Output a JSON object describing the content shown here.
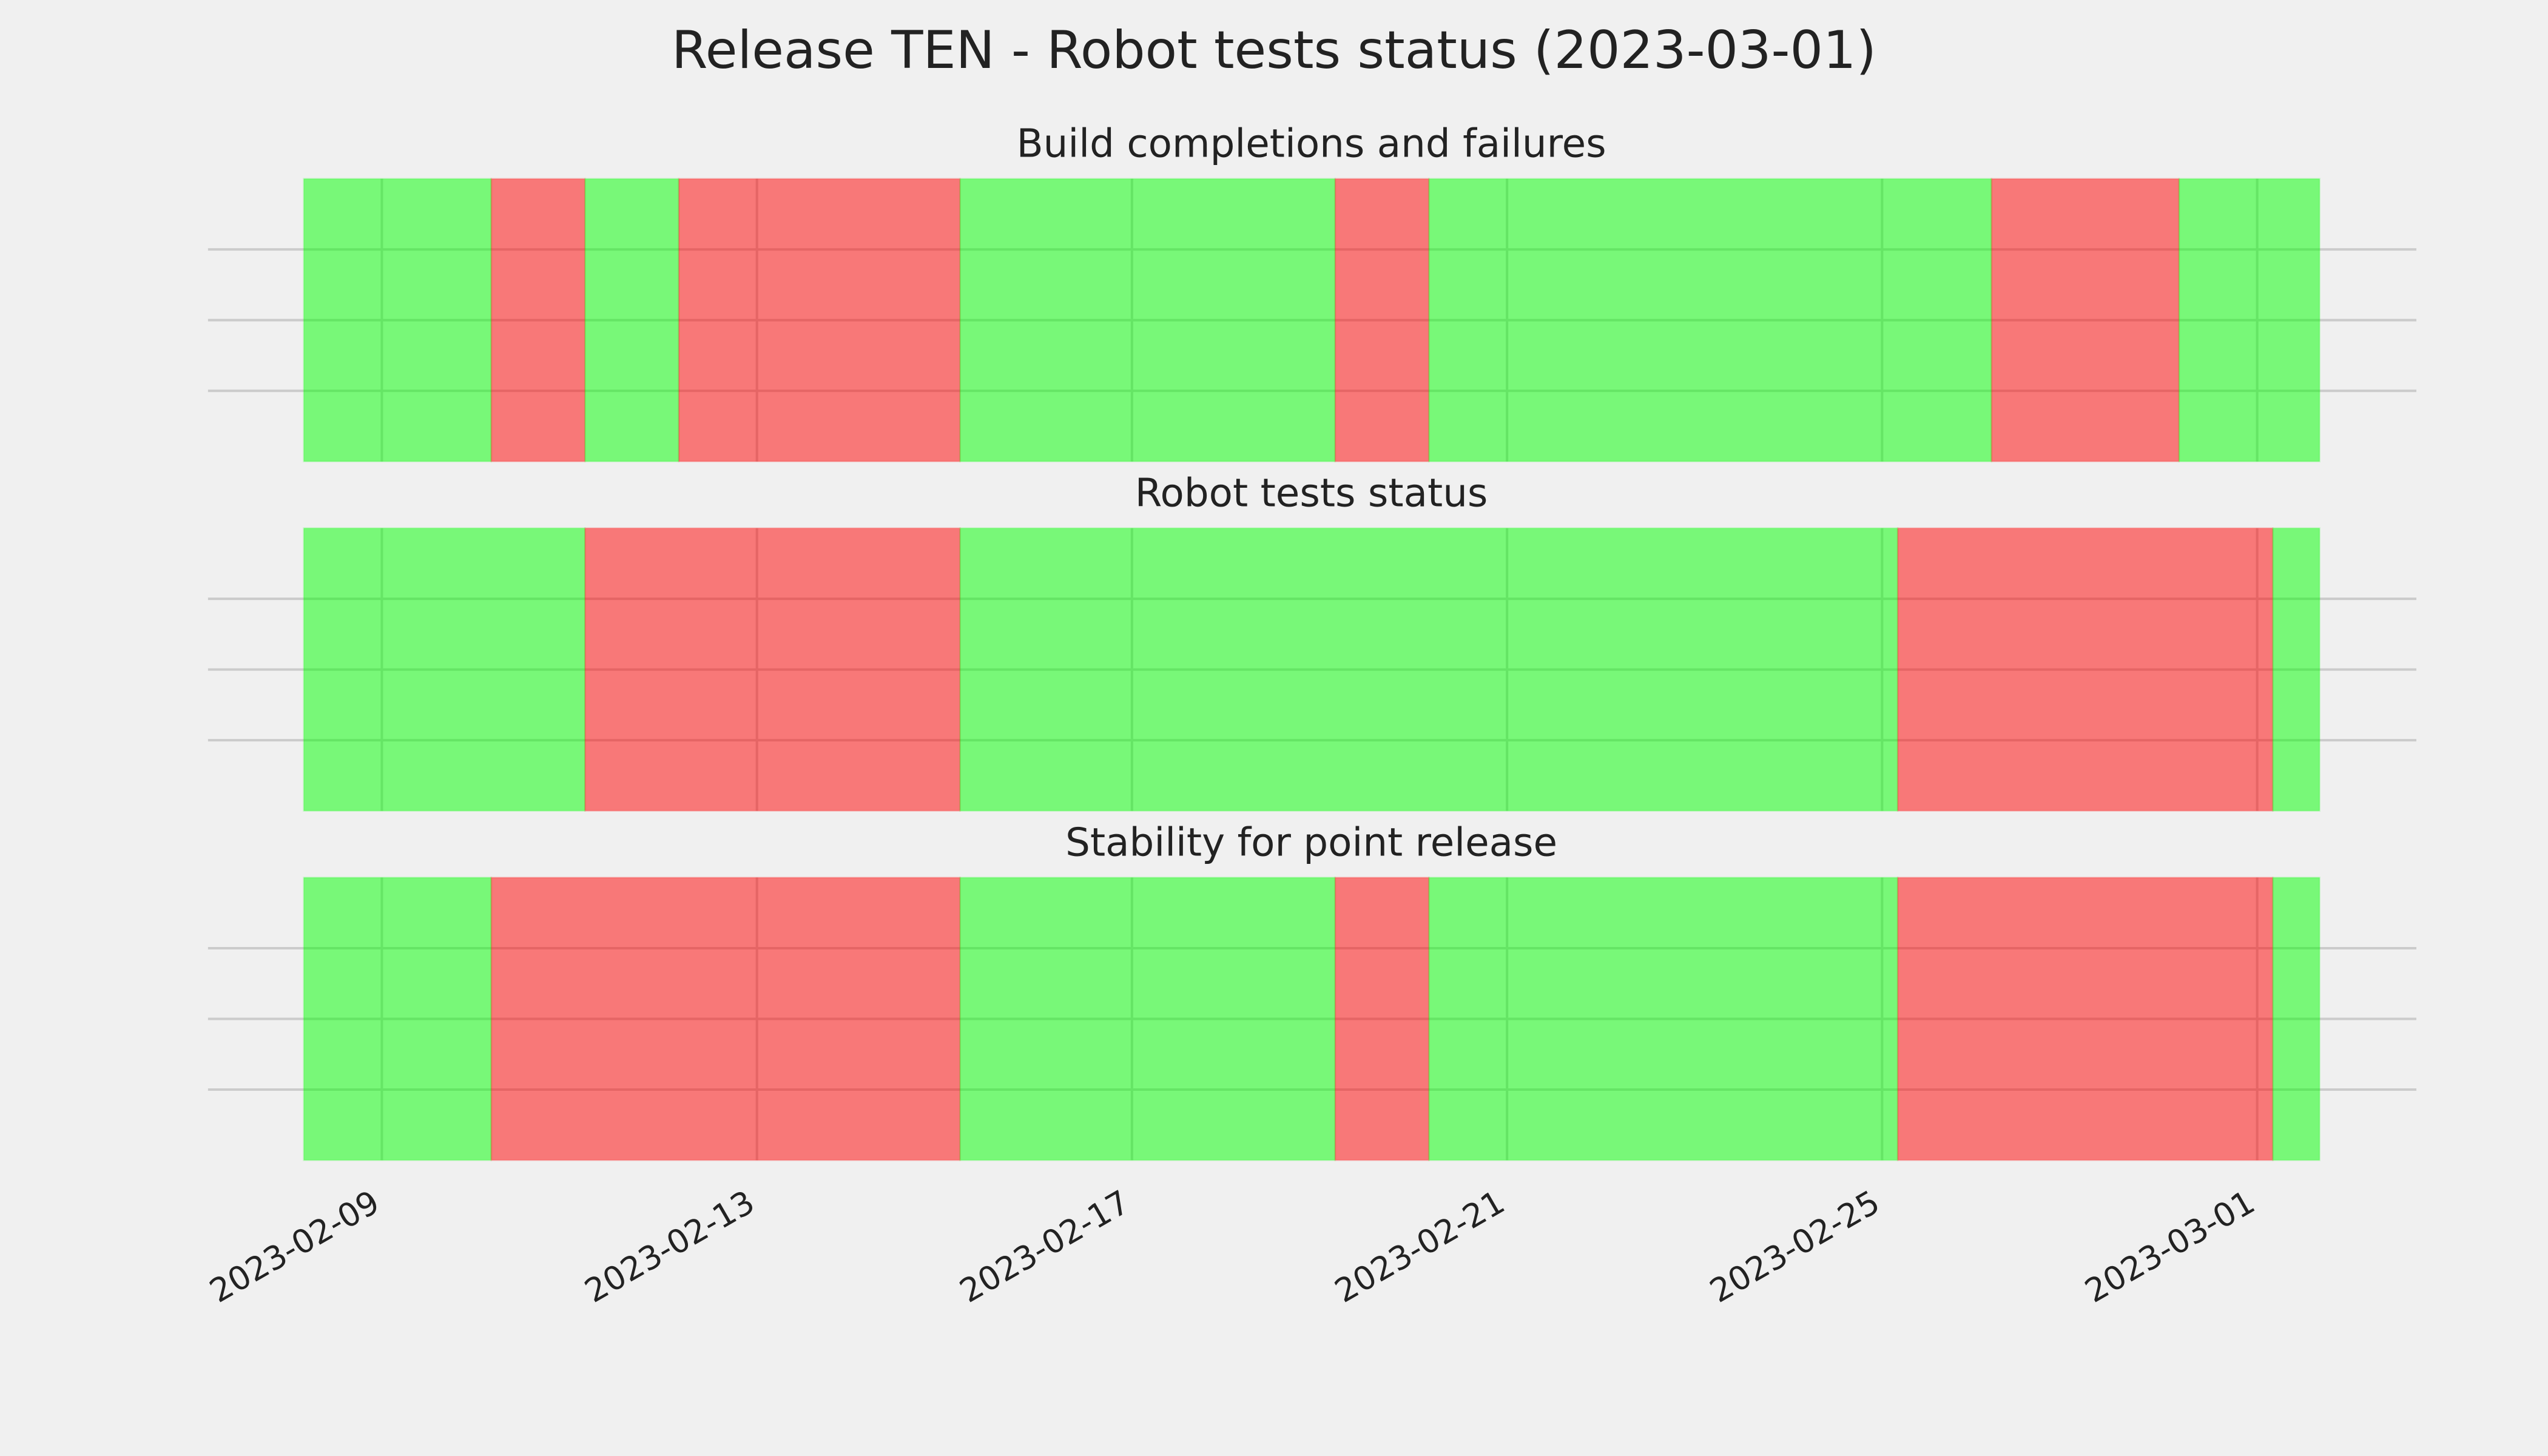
{
  "title": "Release TEN - Robot tests status (2023-03-01)",
  "chart_data": [
    {
      "type": "span",
      "title": "Build completions and failures",
      "xlim": [
        "2023-02-07T03:30",
        "2023-03-02T16:45"
      ],
      "xticks": [
        "2023-02-09",
        "2023-02-13",
        "2023-02-17",
        "2023-02-21",
        "2023-02-25",
        "2023-03-01"
      ],
      "grid": true,
      "segments": [
        {
          "start": "2023-02-08T04:00",
          "end": "2023-02-10T04:00",
          "color": "#00ff00"
        },
        {
          "start": "2023-02-10T04:00",
          "end": "2023-02-11T04:00",
          "color": "#ff0000"
        },
        {
          "start": "2023-02-11T04:00",
          "end": "2023-02-12T04:00",
          "color": "#00ff00"
        },
        {
          "start": "2023-02-12T04:00",
          "end": "2023-02-15T04:00",
          "color": "#ff0000"
        },
        {
          "start": "2023-02-15T04:00",
          "end": "2023-02-19T04:00",
          "color": "#00ff00"
        },
        {
          "start": "2023-02-19T04:00",
          "end": "2023-02-20T04:00",
          "color": "#ff0000"
        },
        {
          "start": "2023-02-20T04:00",
          "end": "2023-02-26T04:00",
          "color": "#00ff00"
        },
        {
          "start": "2023-02-26T04:00",
          "end": "2023-02-28T04:00",
          "color": "#ff0000"
        },
        {
          "start": "2023-02-28T04:00",
          "end": "2023-03-01T16:00",
          "color": "#00ff00"
        }
      ]
    },
    {
      "type": "span",
      "title": "Robot tests status",
      "xlim": [
        "2023-02-07T03:30",
        "2023-03-02T16:45"
      ],
      "xticks": [
        "2023-02-09",
        "2023-02-13",
        "2023-02-17",
        "2023-02-21",
        "2023-02-25",
        "2023-03-01"
      ],
      "grid": true,
      "segments": [
        {
          "start": "2023-02-08T04:00",
          "end": "2023-02-11T04:00",
          "color": "#00ff00"
        },
        {
          "start": "2023-02-11T04:00",
          "end": "2023-02-15T04:00",
          "color": "#ff0000"
        },
        {
          "start": "2023-02-15T04:00",
          "end": "2023-02-25T04:00",
          "color": "#00ff00"
        },
        {
          "start": "2023-02-25T04:00",
          "end": "2023-03-01T04:00",
          "color": "#ff0000"
        },
        {
          "start": "2023-03-01T04:00",
          "end": "2023-03-01T16:00",
          "color": "#00ff00"
        }
      ]
    },
    {
      "type": "span",
      "title": "Stability for point release",
      "xlim": [
        "2023-02-07T03:30",
        "2023-03-02T16:45"
      ],
      "xticks": [
        "2023-02-09",
        "2023-02-13",
        "2023-02-17",
        "2023-02-21",
        "2023-02-25",
        "2023-03-01"
      ],
      "grid": true,
      "segments": [
        {
          "start": "2023-02-08T04:00",
          "end": "2023-02-10T04:00",
          "color": "#00ff00"
        },
        {
          "start": "2023-02-10T04:00",
          "end": "2023-02-15T04:00",
          "color": "#ff0000"
        },
        {
          "start": "2023-02-15T04:00",
          "end": "2023-02-19T04:00",
          "color": "#00ff00"
        },
        {
          "start": "2023-02-19T04:00",
          "end": "2023-02-20T04:00",
          "color": "#ff0000"
        },
        {
          "start": "2023-02-20T04:00",
          "end": "2023-02-25T04:00",
          "color": "#00ff00"
        },
        {
          "start": "2023-02-25T04:00",
          "end": "2023-03-01T04:00",
          "color": "#ff0000"
        },
        {
          "start": "2023-03-01T04:00",
          "end": "2023-03-01T16:00",
          "color": "#00ff00"
        }
      ]
    }
  ]
}
